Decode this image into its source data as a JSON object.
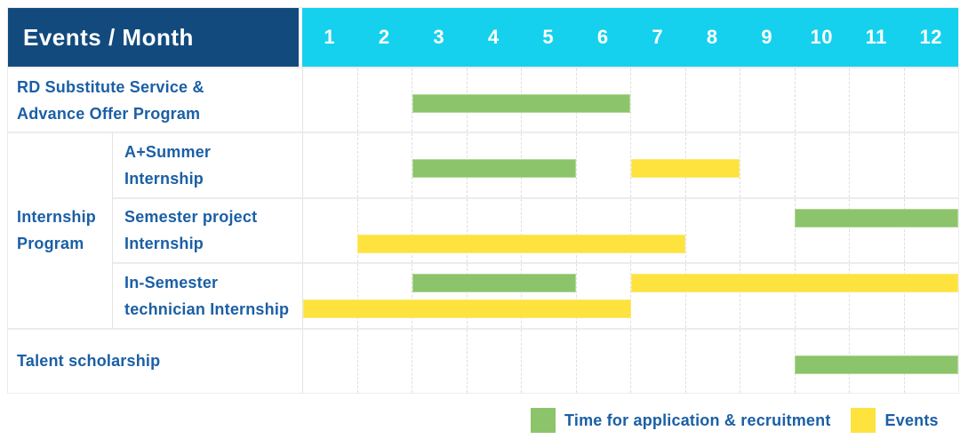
{
  "header": {
    "title": "Events / Month",
    "months": [
      "1",
      "2",
      "3",
      "4",
      "5",
      "6",
      "7",
      "8",
      "9",
      "10",
      "11",
      "12"
    ]
  },
  "rows": {
    "rd": {
      "lines": [
        "RD Substitute Service &",
        "Advance Offer Program"
      ]
    },
    "group": {
      "lines": [
        "Internship",
        "Program"
      ]
    },
    "a_summer": {
      "lines": [
        "A+Summer",
        "Internship"
      ]
    },
    "semester": {
      "lines": [
        "Semester project",
        "Internship"
      ]
    },
    "in_semester": {
      "lines": [
        "In-Semester",
        "technician Internship"
      ]
    },
    "talent": {
      "lines": [
        "Talent scholarship"
      ]
    }
  },
  "bars": {
    "rd": [
      {
        "color": "green",
        "start": 3,
        "end": 6,
        "lane": 0
      }
    ],
    "a_summer": [
      {
        "color": "green",
        "start": 3,
        "end": 5,
        "lane": 0
      },
      {
        "color": "yellow",
        "start": 7,
        "end": 8,
        "lane": 0
      }
    ],
    "semester": [
      {
        "color": "green",
        "start": 10,
        "end": 12,
        "lane": 1
      },
      {
        "color": "yellow",
        "start": 2,
        "end": 7,
        "lane": 2
      }
    ],
    "in_semester": [
      {
        "color": "green",
        "start": 3,
        "end": 5,
        "lane": 1
      },
      {
        "color": "yellow",
        "start": 7,
        "end": 12,
        "lane": 1
      },
      {
        "color": "yellow",
        "start": 1,
        "end": 6,
        "lane": 2
      }
    ],
    "talent": [
      {
        "color": "green",
        "start": 10,
        "end": 12,
        "lane": 0
      }
    ]
  },
  "legend": {
    "application": "Time for application & recruitment",
    "events": "Events"
  },
  "colors": {
    "navy": "#124A7D",
    "cyan": "#15D1EE",
    "blue_text": "#1B5FA5",
    "green": "#8BC46A",
    "green_border": "#B2D795",
    "yellow": "#FEE23E",
    "yellow_border": "#FDE96E",
    "line": "#ECECEC",
    "line_v": "#E3E3E3",
    "line_d": "#DEDEDE"
  },
  "chart_data": {
    "type": "table",
    "title": "Events / Month",
    "x_unit": "month",
    "x_range": [
      1,
      12
    ],
    "legend": {
      "green": "Time for application & recruitment",
      "yellow": "Events"
    },
    "tasks": [
      {
        "name": "RD Substitute Service & Advance Offer Program",
        "group": null,
        "application_recruitment_months": [
          [
            3,
            6
          ]
        ],
        "event_months": []
      },
      {
        "name": "A+Summer Internship",
        "group": "Internship Program",
        "application_recruitment_months": [
          [
            3,
            5
          ]
        ],
        "event_months": [
          [
            7,
            8
          ]
        ]
      },
      {
        "name": "Semester project Internship",
        "group": "Internship Program",
        "application_recruitment_months": [
          [
            10,
            12
          ]
        ],
        "event_months": [
          [
            2,
            7
          ]
        ]
      },
      {
        "name": "In-Semester technician Internship",
        "group": "Internship Program",
        "application_recruitment_months": [
          [
            3,
            5
          ]
        ],
        "event_months": [
          [
            7,
            12
          ],
          [
            1,
            6
          ]
        ]
      },
      {
        "name": "Talent scholarship",
        "group": null,
        "application_recruitment_months": [
          [
            10,
            12
          ]
        ],
        "event_months": []
      }
    ]
  }
}
